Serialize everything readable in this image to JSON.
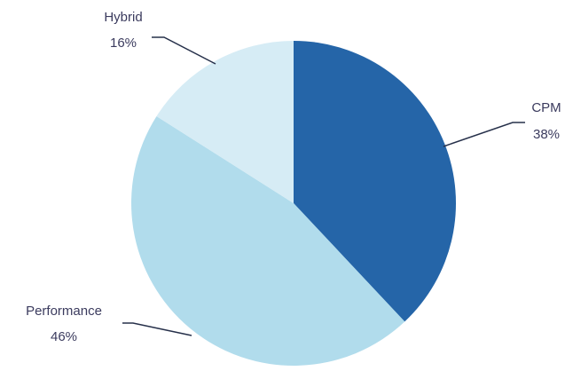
{
  "chart_data": {
    "type": "pie",
    "slices": [
      {
        "label": "CPM",
        "value": 38,
        "value_label": "38%",
        "color": "#2565a8"
      },
      {
        "label": "Performance",
        "value": 46,
        "value_label": "46%",
        "color": "#b1dcec"
      },
      {
        "label": "Hybrid",
        "value": 16,
        "value_label": "16%",
        "color": "#d6ecf5"
      }
    ],
    "start": "12 o'clock",
    "direction": "clockwise",
    "legend": "none"
  }
}
